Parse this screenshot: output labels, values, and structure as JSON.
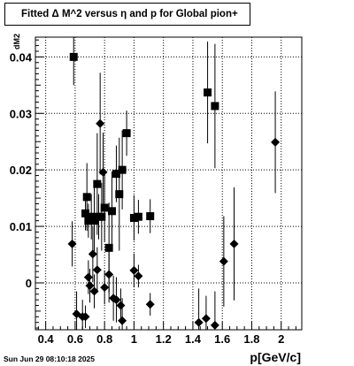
{
  "title": "Fitted Δ M^2 versus η and p for Global pion+",
  "footer": "Sun Jun 29 08:10:18 2025",
  "chart_data": {
    "type": "scatter",
    "title": "Fitted Δ M^2 versus η and p for Global pion+",
    "xlabel": "p[GeV/c]",
    "ylabel": "dM2",
    "xlim": [
      0.33,
      2.14
    ],
    "ylim": [
      -0.0083,
      0.0435
    ],
    "xticks": [
      0.4,
      0.6,
      0.8,
      1,
      1.2,
      1.4,
      1.6,
      1.8,
      2
    ],
    "yticks": [
      0,
      0.01,
      0.02,
      0.03,
      0.04
    ],
    "xtick_labels": [
      "0.4",
      "0.6",
      "0.8",
      "1",
      "1.2",
      "1.4",
      "1.6",
      "1.8",
      "2"
    ],
    "ytick_labels": [
      "0",
      "0.01",
      "0.02",
      "0.03",
      "0.04"
    ],
    "grid": true,
    "series": [
      {
        "marker": "square",
        "points": [
          {
            "x": 0.59,
            "y": 0.04,
            "err": 0.005
          },
          {
            "x": 0.67,
            "y": 0.0123,
            "err": 0.003
          },
          {
            "x": 0.68,
            "y": 0.0152,
            "err": 0.006
          },
          {
            "x": 0.69,
            "y": 0.011,
            "err": 0.003
          },
          {
            "x": 0.71,
            "y": 0.0117,
            "err": 0.004
          },
          {
            "x": 0.73,
            "y": 0.011,
            "err": 0.006
          },
          {
            "x": 0.75,
            "y": 0.0175,
            "err": 0.009
          },
          {
            "x": 0.76,
            "y": 0.0117,
            "err": 0.004
          },
          {
            "x": 0.78,
            "y": 0.0117,
            "err": 0.006
          },
          {
            "x": 0.8,
            "y": 0.0133,
            "err": 0.006
          },
          {
            "x": 0.83,
            "y": 0.0062,
            "err": 0.008
          },
          {
            "x": 0.85,
            "y": 0.0127,
            "err": 0.007
          },
          {
            "x": 0.88,
            "y": 0.0193,
            "err": 0.005
          },
          {
            "x": 0.9,
            "y": 0.0157,
            "err": 0.01
          },
          {
            "x": 0.92,
            "y": 0.02,
            "err": 0.007
          },
          {
            "x": 0.95,
            "y": 0.0265,
            "err": 0.004
          },
          {
            "x": 1.0,
            "y": 0.0115,
            "err": 0.004
          },
          {
            "x": 1.03,
            "y": 0.0117,
            "err": 0.003
          },
          {
            "x": 1.11,
            "y": 0.0118,
            "err": 0.003
          },
          {
            "x": 1.5,
            "y": 0.0337,
            "err": 0.009
          },
          {
            "x": 1.55,
            "y": 0.0313,
            "err": 0.011
          }
        ]
      },
      {
        "marker": "diamond",
        "points": [
          {
            "x": 0.58,
            "y": 0.0069,
            "err": 0.004
          },
          {
            "x": 0.61,
            "y": -0.0055,
            "err": 0.004
          },
          {
            "x": 0.65,
            "y": -0.006,
            "err": 0.003
          },
          {
            "x": 0.67,
            "y": -0.006,
            "err": 0.002
          },
          {
            "x": 0.69,
            "y": 0.001,
            "err": 0.003
          },
          {
            "x": 0.7,
            "y": -0.0005,
            "err": 0.003
          },
          {
            "x": 0.72,
            "y": 0.0051,
            "err": 0.005
          },
          {
            "x": 0.73,
            "y": -0.0015,
            "err": 0.003
          },
          {
            "x": 0.75,
            "y": 0.0023,
            "err": 0.004
          },
          {
            "x": 0.77,
            "y": 0.0282,
            "err": 0.009
          },
          {
            "x": 0.79,
            "y": 0.0196,
            "err": 0.007
          },
          {
            "x": 0.8,
            "y": -0.0008,
            "err": 0.003
          },
          {
            "x": 0.83,
            "y": 0.0015,
            "err": 0.005
          },
          {
            "x": 0.86,
            "y": -0.0027,
            "err": 0.004
          },
          {
            "x": 0.88,
            "y": -0.003,
            "err": 0.004
          },
          {
            "x": 0.91,
            "y": -0.004,
            "err": 0.003
          },
          {
            "x": 0.92,
            "y": -0.0067,
            "err": 0.004
          },
          {
            "x": 1.0,
            "y": 0.0022,
            "err": 0.003
          },
          {
            "x": 1.03,
            "y": 0.0012,
            "err": 0.002
          },
          {
            "x": 1.11,
            "y": -0.0038,
            "err": 0.002
          },
          {
            "x": 1.44,
            "y": -0.007,
            "err": 0.006
          },
          {
            "x": 1.49,
            "y": -0.0063,
            "err": 0.004
          },
          {
            "x": 1.55,
            "y": -0.0075,
            "err": 0.006
          },
          {
            "x": 1.61,
            "y": 0.0038,
            "err": 0.008
          },
          {
            "x": 1.68,
            "y": 0.0069,
            "err": 0.01
          },
          {
            "x": 1.96,
            "y": 0.0249,
            "err": 0.009
          }
        ]
      }
    ]
  }
}
